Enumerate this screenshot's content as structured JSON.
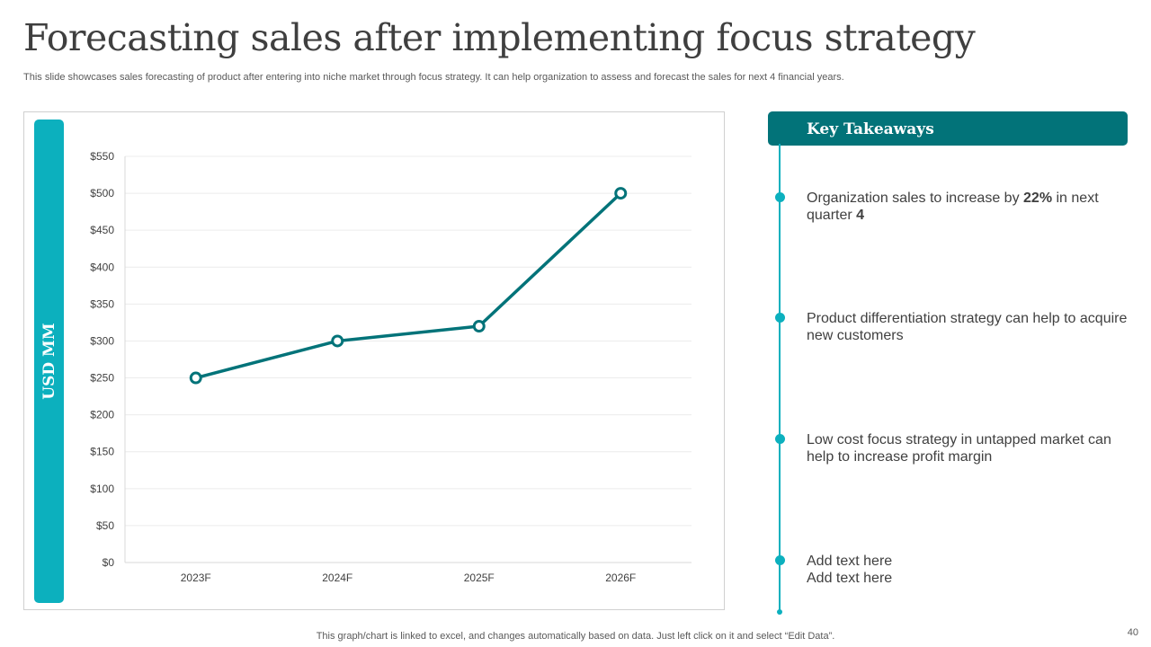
{
  "title": "Forecasting sales after implementing focus strategy",
  "subtitle": "This slide showcases sales forecasting of product after entering into niche market through focus strategy. It can help organization to assess and forecast the sales for next 4 financial years.",
  "y_axis_band_label": "USD MM",
  "chart_data": {
    "type": "line",
    "title": "",
    "xlabel": "",
    "ylabel": "USD MM",
    "categories": [
      "2023F",
      "2024F",
      "2025F",
      "2026F"
    ],
    "series": [
      {
        "name": "Sales",
        "values": [
          250,
          300,
          320,
          500
        ]
      }
    ],
    "ylim": [
      0,
      550
    ],
    "yticks": [
      0,
      50,
      100,
      150,
      200,
      250,
      300,
      350,
      400,
      450,
      500,
      550
    ],
    "ytick_labels": [
      "$0",
      "$50",
      "$100",
      "$150",
      "$200",
      "$250",
      "$300",
      "$350",
      "$400",
      "$450",
      "$500",
      "$550"
    ],
    "grid": true,
    "line_color": "#027379",
    "marker_fill": "#ffffff"
  },
  "takeaways": {
    "header": "Key Takeaways",
    "items": [
      {
        "text_before": "Organization  sales to increase by ",
        "bold_value": "22%",
        "text_middle": " in next quarter ",
        "bold_suffix": "4"
      },
      {
        "text": "Product differentiation strategy can help to acquire new customers"
      },
      {
        "text": "Low cost focus strategy in untapped market can help to increase profit margin"
      },
      {
        "line1": "Add text here",
        "line2": "Add text here"
      }
    ]
  },
  "footer_note": "This graph/chart is linked to excel,  and changes automatically based on data. Just left click on it and select “Edit Data”.",
  "page_number": "40",
  "colors": {
    "accent": "#0cb0be",
    "dark_teal": "#027379",
    "title": "#3f3f3f"
  }
}
